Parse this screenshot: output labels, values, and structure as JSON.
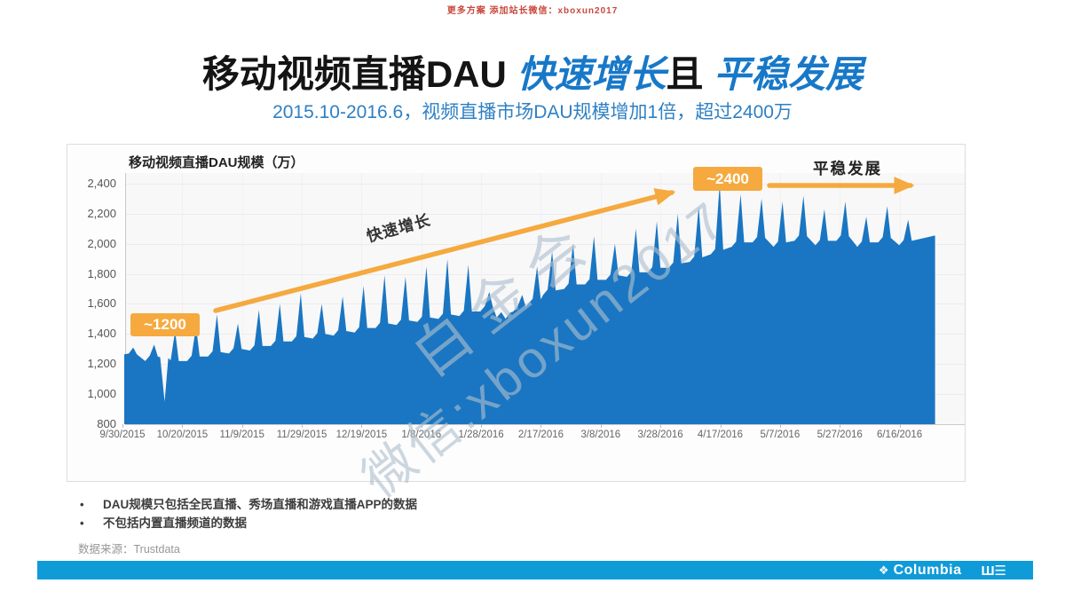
{
  "promo_text": "更多方案 添加站长微信：xboxun2017",
  "header": {
    "title_part1": "移动视频直播DAU ",
    "title_part2": "快速增长",
    "title_part3": "且",
    "title_part4": " 平稳发展",
    "subtitle": "2015.10-2016.6，视频直播市场DAU规模增加1倍，超过2400万",
    "accent_color": "#1878c8"
  },
  "chart_data": {
    "type": "area",
    "title": "移动视频直播DAU规模（万）",
    "series_name": "移动视频直播DAU规模(万)",
    "fill_color": "#1a76c2",
    "ylim": [
      800,
      2400
    ],
    "y_ticks": [
      "2,400",
      "2,200",
      "2,000",
      "1,800",
      "1,600",
      "1,400",
      "1,200",
      "1,000",
      "800"
    ],
    "x_ticks": [
      "9/30/2015",
      "10/20/2015",
      "11/9/2015",
      "11/29/2015",
      "12/19/2015",
      "1/8/2016",
      "1/28/2016",
      "2/17/2016",
      "3/8/2016",
      "3/28/2016",
      "4/17/2016",
      "5/7/2016",
      "5/27/2016",
      "6/16/2016"
    ],
    "x_tick_interval_days": 20,
    "grid": true,
    "legend": "none",
    "description": "Daily DAU with weekly spikes; weeks = [dayIndex from 9/30/2015, weekday baseline, weekend peak] in 万",
    "start": [
      0,
      1265
    ],
    "end": [
      271,
      2055
    ],
    "weeks": [
      [
        3,
        1255,
        1310
      ],
      [
        10,
        1240,
        1330
      ],
      [
        13.5,
        1230,
        950
      ],
      [
        17,
        1210,
        1420
      ],
      [
        24,
        1240,
        1450
      ],
      [
        31,
        1270,
        1530
      ],
      [
        38,
        1290,
        1470
      ],
      [
        45,
        1310,
        1560
      ],
      [
        52,
        1340,
        1600
      ],
      [
        59,
        1370,
        1670
      ],
      [
        66,
        1390,
        1600
      ],
      [
        73,
        1410,
        1650
      ],
      [
        80,
        1430,
        1720
      ],
      [
        87,
        1460,
        1790
      ],
      [
        94,
        1480,
        1780
      ],
      [
        101,
        1500,
        1850
      ],
      [
        108,
        1520,
        1900
      ],
      [
        115,
        1540,
        1860
      ],
      [
        122,
        1570,
        1680
      ],
      [
        127.5,
        1530,
        1500
      ],
      [
        133,
        1570,
        1660
      ],
      [
        138,
        1620,
        1850
      ],
      [
        143,
        1680,
        1950
      ],
      [
        150,
        1720,
        2000
      ],
      [
        157,
        1750,
        2050
      ],
      [
        164,
        1780,
        2000
      ],
      [
        171,
        1800,
        2100
      ],
      [
        178,
        1830,
        2150
      ],
      [
        185,
        1860,
        2200
      ],
      [
        192,
        1900,
        2250
      ],
      [
        199,
        1950,
        2400
      ],
      [
        206,
        2000,
        2330
      ],
      [
        213,
        2030,
        2300
      ],
      [
        220,
        2000,
        2280
      ],
      [
        227,
        2040,
        2320
      ],
      [
        234,
        2010,
        2230
      ],
      [
        241,
        2040,
        2280
      ],
      [
        248,
        2000,
        2180
      ],
      [
        255,
        2030,
        2250
      ],
      [
        262,
        2010,
        2160
      ]
    ],
    "annotations": {
      "start_value": "~1200",
      "growth_text": "快速增长",
      "peak_value": "~2400",
      "stable_text": "平稳发展",
      "arrow_color": "#f5a93e"
    }
  },
  "watermark": {
    "line1": "白金会",
    "line2": "微信:xboxun2017"
  },
  "footnotes": [
    "DAU规模只包括全民直播、秀场直播和游戏直播APP的数据",
    "不包括内置直播频道的数据"
  ],
  "source": {
    "label": "数据来源：",
    "value": "Trustdata"
  },
  "footer": {
    "bar_color": "#0f9bd8",
    "columbia_icon": "❖",
    "columbia_text": "Columbia",
    "we_logo": "Ш☰"
  }
}
